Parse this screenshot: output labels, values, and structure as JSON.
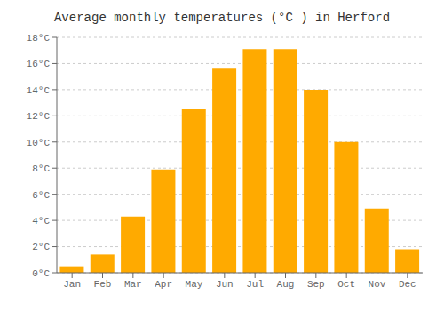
{
  "chart_data": {
    "type": "bar",
    "title": "Average monthly temperatures (°C ) in Herford",
    "categories": [
      "Jan",
      "Feb",
      "Mar",
      "Apr",
      "May",
      "Jun",
      "Jul",
      "Aug",
      "Sep",
      "Oct",
      "Nov",
      "Dec"
    ],
    "values": [
      0.5,
      1.4,
      4.3,
      7.9,
      12.5,
      15.6,
      17.1,
      17.1,
      14.0,
      10.0,
      4.9,
      1.8
    ],
    "color": "#FFAA00",
    "ylim": [
      0,
      18
    ],
    "yticks": [
      {
        "value": 0,
        "label": "0°C"
      },
      {
        "value": 2,
        "label": "2°C"
      },
      {
        "value": 4,
        "label": "4°C"
      },
      {
        "value": 6,
        "label": "6°C"
      },
      {
        "value": 8,
        "label": "8°C"
      },
      {
        "value": 10,
        "label": "10°C"
      },
      {
        "value": 12,
        "label": "12°C"
      },
      {
        "value": 14,
        "label": "14°C"
      },
      {
        "value": 16,
        "label": "16°C"
      },
      {
        "value": 18,
        "label": "18°C"
      }
    ],
    "grid": true
  }
}
